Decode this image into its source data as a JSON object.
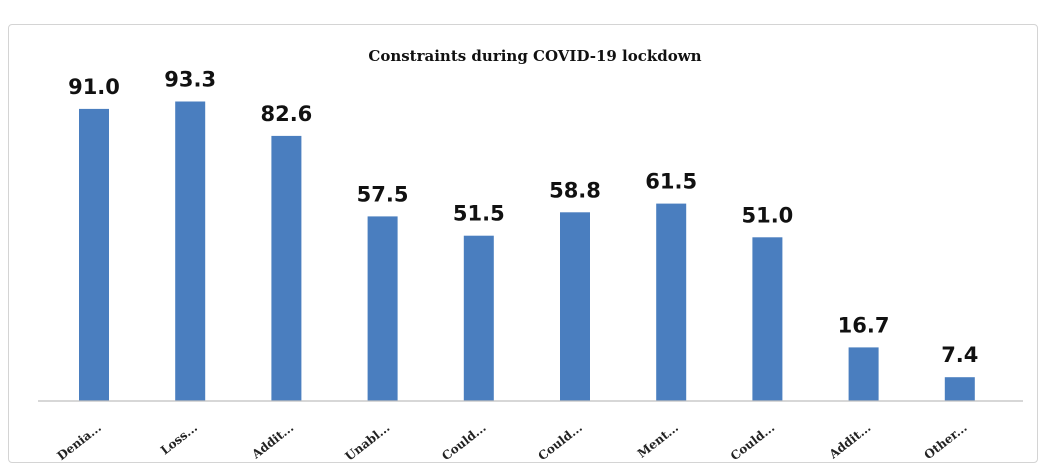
{
  "chart_data": {
    "type": "bar",
    "title": "Constraints during COVID-19 lockdown",
    "categories": [
      "Denia...",
      "Loss...",
      "Addit...",
      "Unabl...",
      "Could...",
      "Could...",
      "Ment...",
      "Could...",
      "Addit...",
      "Other..."
    ],
    "values": [
      91.0,
      93.3,
      82.6,
      57.5,
      51.5,
      58.8,
      61.5,
      51.0,
      16.7,
      7.4
    ],
    "value_labels": [
      "91.0",
      "93.3",
      "82.6",
      "57.5",
      "51.5",
      "58.8",
      "61.5",
      "51.0",
      "16.7",
      "7.4"
    ],
    "xlabel": "",
    "ylabel": "",
    "ylim": [
      0,
      100
    ],
    "grid": false,
    "legend": "none",
    "bar_color": "#4a7ebf"
  }
}
